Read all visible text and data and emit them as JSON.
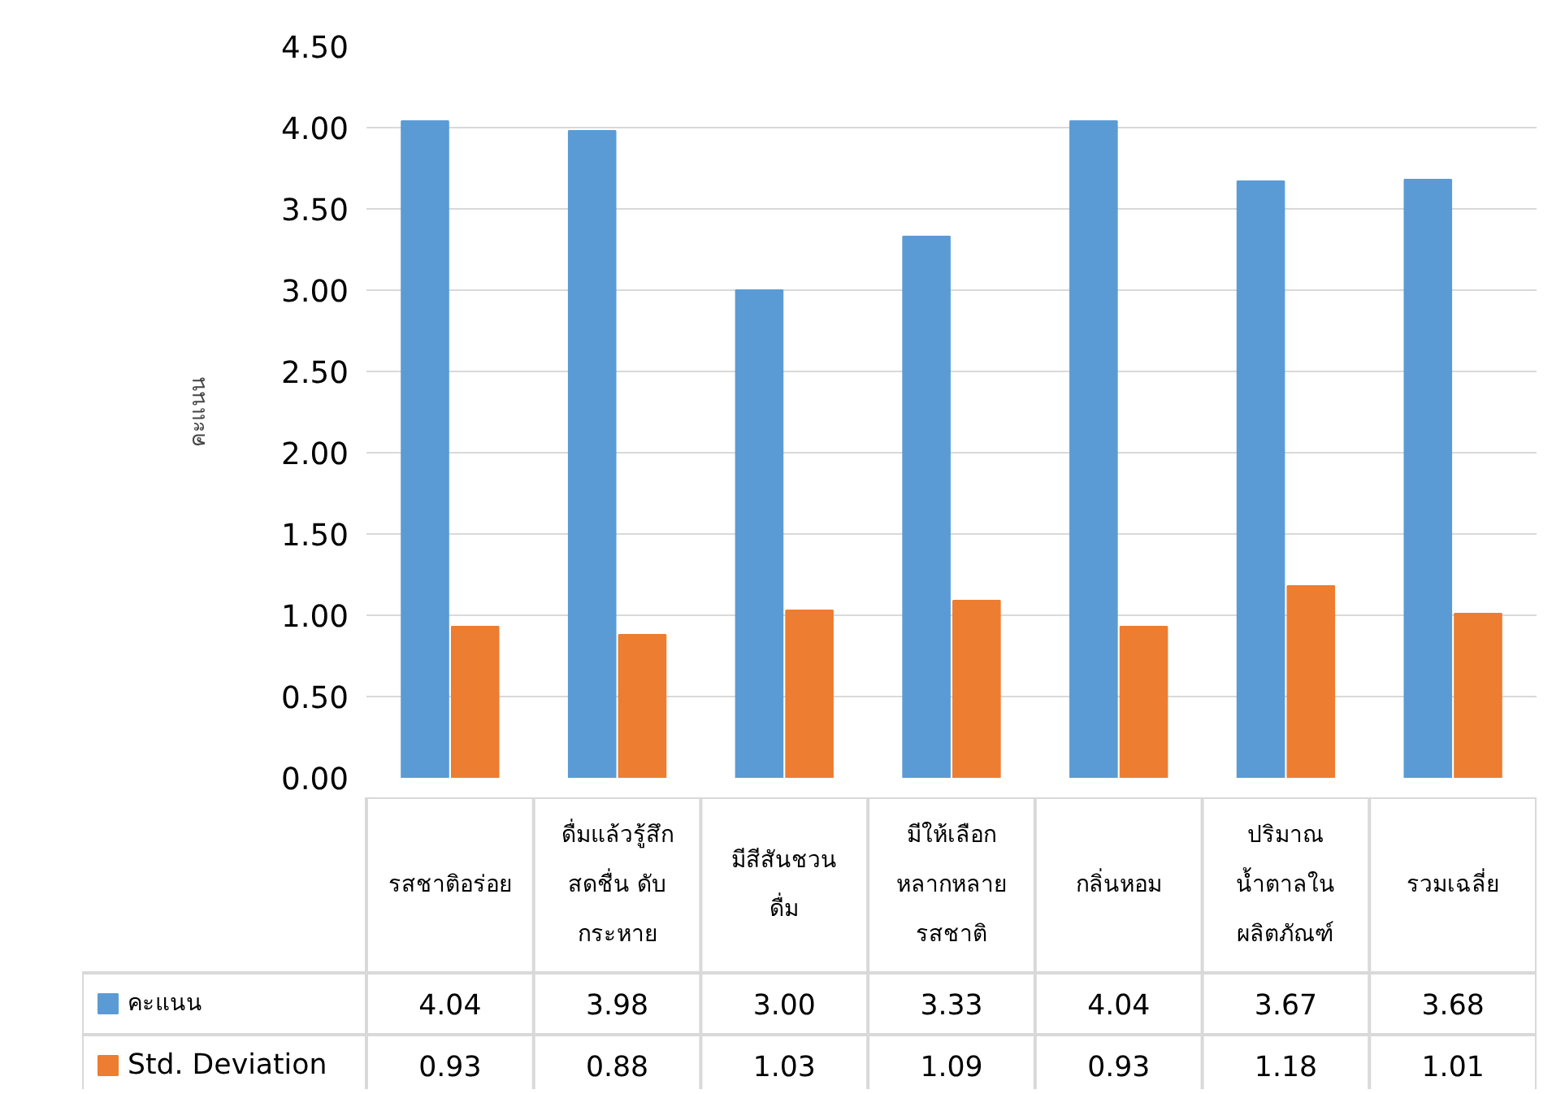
{
  "chart_data": {
    "type": "bar",
    "ylabel": "คะแนน",
    "categories": [
      "รสชาติอร่อย",
      "ดื่มแล้วรู้สึก\nสดชื่น ดับ\nกระหาย",
      "มีสีสันชวน\nดื่ม",
      "มีให้เลือก\nหลากหลาย\nรสชาติ",
      "กลิ่นหอม",
      "ปริมาณ\nน้ำตาลใน\nผลิตภัณฑ์",
      "รวมเฉลี่ย"
    ],
    "series": [
      {
        "name": "คะแนน",
        "color": "#5b9bd5",
        "values": [
          4.04,
          3.98,
          3.0,
          3.33,
          4.04,
          3.67,
          3.68
        ],
        "value_labels": [
          "4.04",
          "3.98",
          "3.00",
          "3.33",
          "4.04",
          "3.67",
          "3.68"
        ]
      },
      {
        "name": "Std. Deviation",
        "color": "#ed7d31",
        "values": [
          0.93,
          0.88,
          1.03,
          1.09,
          0.93,
          1.18,
          1.01
        ],
        "value_labels": [
          "0.93",
          "0.88",
          "1.03",
          "1.09",
          "0.93",
          "1.18",
          "1.01"
        ]
      }
    ],
    "ylim": [
      0,
      4.5
    ],
    "yticks": [
      {
        "value": 0,
        "label": "0.00"
      },
      {
        "value": 0.5,
        "label": "0.50"
      },
      {
        "value": 1,
        "label": "1.00"
      },
      {
        "value": 1.5,
        "label": "1.50"
      },
      {
        "value": 2,
        "label": "2.00"
      },
      {
        "value": 2.5,
        "label": "2.50"
      },
      {
        "value": 3,
        "label": "3.00"
      },
      {
        "value": 3.5,
        "label": "3.50"
      },
      {
        "value": 4,
        "label": "4.00"
      },
      {
        "value": 4.5,
        "label": "4.50"
      }
    ],
    "grid": "y",
    "legend": "bottom",
    "tick_labels": "y"
  }
}
